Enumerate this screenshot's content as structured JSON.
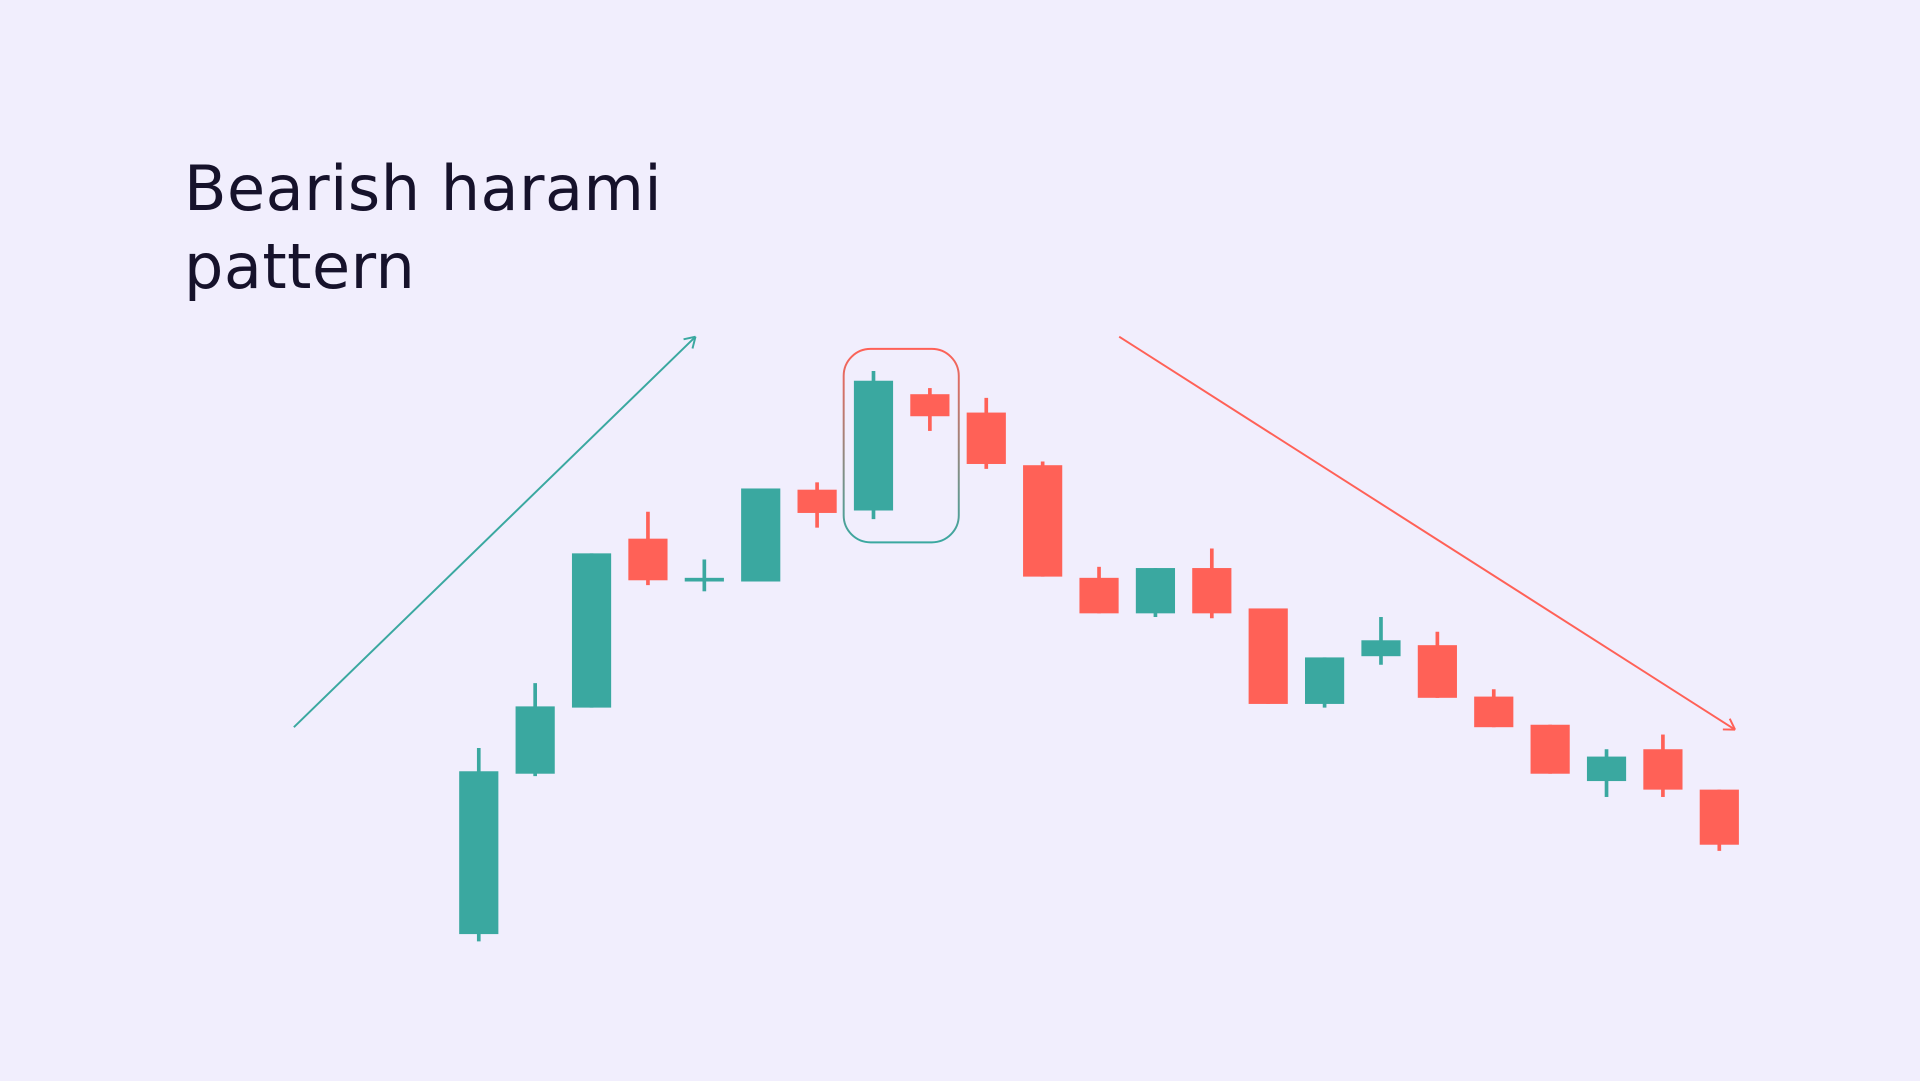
{
  "title": "Bearish harami pattern",
  "colors": {
    "background": "#f1eefd",
    "bullish": "#3aa8a0",
    "bearish": "#ff6157",
    "text": "#16122b"
  },
  "chart_data": {
    "type": "candlestick",
    "title": "Bearish harami pattern",
    "xlabel": "",
    "ylabel": "",
    "axes_visible": false,
    "grid": false,
    "candles": [
      {
        "open": 120,
        "high": 272,
        "low": 114,
        "close": 253,
        "direction": "up"
      },
      {
        "open": 251,
        "high": 325,
        "low": 249,
        "close": 306,
        "direction": "up"
      },
      {
        "open": 305,
        "high": 431,
        "low": 305,
        "close": 431,
        "direction": "up"
      },
      {
        "open": 443,
        "high": 465,
        "low": 405,
        "close": 409,
        "direction": "down"
      },
      {
        "open": 409,
        "high": 426,
        "low": 400,
        "close": 410,
        "direction": "up"
      },
      {
        "open": 408,
        "high": 484,
        "low": 408,
        "close": 484,
        "direction": "up"
      },
      {
        "open": 483,
        "high": 489,
        "low": 452,
        "close": 464,
        "direction": "down"
      },
      {
        "open": 466,
        "high": 580,
        "low": 459,
        "close": 572,
        "direction": "up"
      },
      {
        "open": 561,
        "high": 566,
        "low": 531,
        "close": 543,
        "direction": "down"
      },
      {
        "open": 546,
        "high": 558,
        "low": 500,
        "close": 504,
        "direction": "down"
      },
      {
        "open": 503,
        "high": 506,
        "low": 412,
        "close": 412,
        "direction": "down"
      },
      {
        "open": 411,
        "high": 420,
        "low": 382,
        "close": 382,
        "direction": "down"
      },
      {
        "open": 382,
        "high": 419,
        "low": 379,
        "close": 419,
        "direction": "up"
      },
      {
        "open": 419,
        "high": 435,
        "low": 378,
        "close": 382,
        "direction": "down"
      },
      {
        "open": 386,
        "high": 386,
        "low": 308,
        "close": 308,
        "direction": "down"
      },
      {
        "open": 308,
        "high": 346,
        "low": 305,
        "close": 346,
        "direction": "up"
      },
      {
        "open": 347,
        "high": 379,
        "low": 340,
        "close": 360,
        "direction": "up"
      },
      {
        "open": 356,
        "high": 367,
        "low": 313,
        "close": 313,
        "direction": "down"
      },
      {
        "open": 314,
        "high": 320,
        "low": 289,
        "close": 289,
        "direction": "down"
      },
      {
        "open": 291,
        "high": 291,
        "low": 251,
        "close": 251,
        "direction": "down"
      },
      {
        "open": 245,
        "high": 271,
        "low": 232,
        "close": 265,
        "direction": "up"
      },
      {
        "open": 271,
        "high": 283,
        "low": 232,
        "close": 238,
        "direction": "down"
      },
      {
        "open": 238,
        "high": 238,
        "low": 188,
        "close": 193,
        "direction": "down"
      }
    ],
    "highlight": {
      "candles": [
        8,
        9
      ],
      "label": ""
    },
    "trend_arrows": [
      {
        "direction": "up",
        "color": "#3aa8a0"
      },
      {
        "direction": "down",
        "color": "#ff6157"
      }
    ]
  }
}
